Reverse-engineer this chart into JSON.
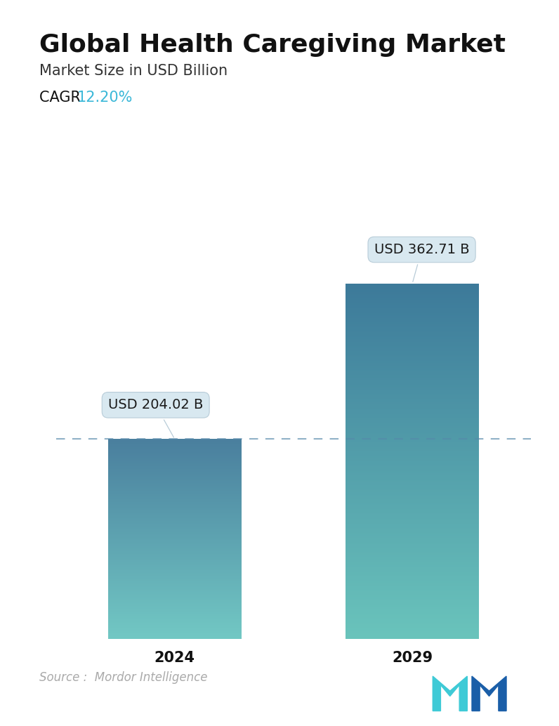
{
  "title": "Global Health Caregiving Market",
  "subtitle": "Market Size in USD Billion",
  "cagr_label": "CAGR  ",
  "cagr_value": "12.20%",
  "cagr_color": "#3bb8d8",
  "categories": [
    "2024",
    "2029"
  ],
  "values": [
    204.02,
    362.71
  ],
  "bar_labels": [
    "USD 204.02 B",
    "USD 362.71 B"
  ],
  "bar_color_top_1": "#4a7f9e",
  "bar_color_bottom_1": "#72c8c4",
  "bar_color_top_2": "#3d7a9a",
  "bar_color_bottom_2": "#6ac4bc",
  "dashed_line_color": "#5588aa",
  "dashed_line_y": 204.02,
  "source_text": "Source :  Mordor Intelligence",
  "source_color": "#aaaaaa",
  "background_color": "#ffffff",
  "ylim_max": 430,
  "title_fontsize": 26,
  "subtitle_fontsize": 15,
  "cagr_fontsize": 15,
  "tick_fontsize": 15,
  "label_fontsize": 14,
  "source_fontsize": 12,
  "tooltip_bg_color": "#d8e8f0",
  "tooltip_edge_color": "#b8ccd8",
  "tooltip_text_color": "#1a1a1a"
}
